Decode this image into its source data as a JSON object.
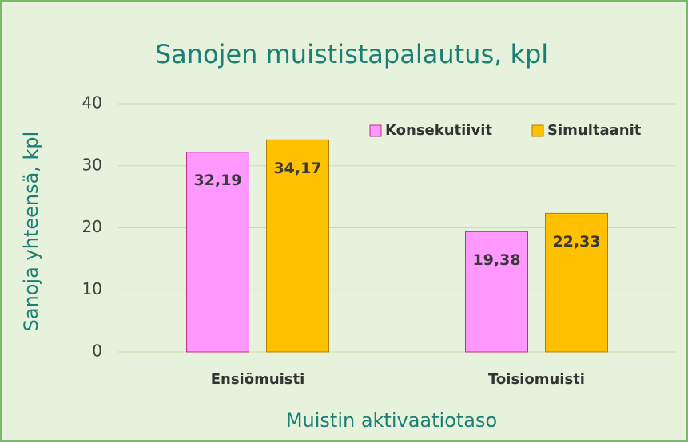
{
  "chart_data": {
    "type": "bar",
    "title": "Sanojen muististapalautus, kpl",
    "xlabel": "Muistin aktivaatiotaso",
    "ylabel": "Sanoja yhteensä, kpl",
    "categories": [
      "Ensiömuisti",
      "Toisiomuisti"
    ],
    "series": [
      {
        "name": "Konsekutiivit",
        "color": "#ff99ff",
        "values": [
          32.19,
          19.38
        ],
        "value_labels": [
          "32,19",
          "19,38"
        ]
      },
      {
        "name": "Simultaanit",
        "color": "#ffc000",
        "values": [
          34.17,
          22.33
        ],
        "value_labels": [
          "34,17",
          "22,33"
        ]
      }
    ],
    "ylim": [
      0,
      40
    ],
    "yticks": [
      0,
      10,
      20,
      30,
      40
    ],
    "grid": true,
    "legend": "top-right"
  }
}
